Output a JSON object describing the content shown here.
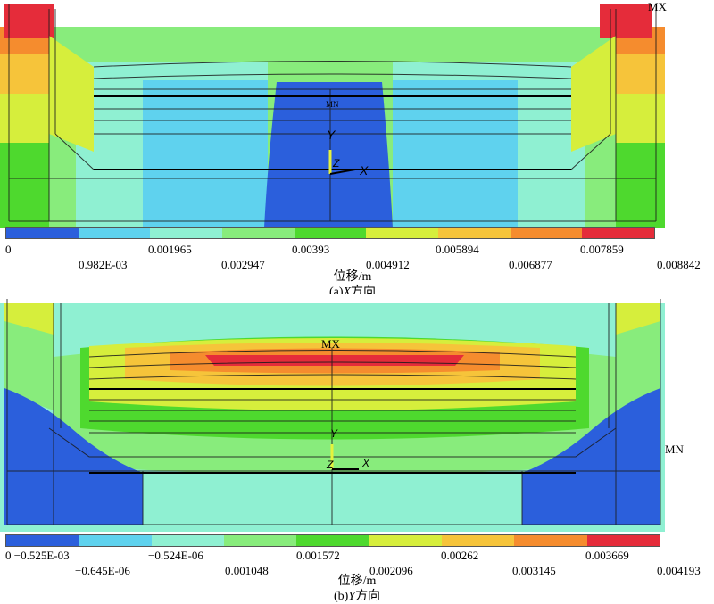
{
  "panel_a": {
    "caption_axis": "X",
    "caption_prefix": "(a)",
    "caption_suffix": "方向",
    "unit_label": "位移/m",
    "marker_max": "MX",
    "marker_mn_small": "MN",
    "axes": {
      "y": "Y",
      "z": "Z",
      "x": "X"
    },
    "legend_colors": [
      "#2b5fdc",
      "#5fd2ee",
      "#8ff0d2",
      "#88ec7c",
      "#4ed92e",
      "#d6ee3c",
      "#f6c43a",
      "#f58c2e",
      "#e52c3a"
    ],
    "ticks_top": [
      "0",
      "0.001965",
      "0.00393",
      "0.005894",
      "0.007859"
    ],
    "ticks_bottom": [
      "0.982E-03",
      "0.002947",
      "0.004912",
      "0.006877",
      "0.008842"
    ]
  },
  "panel_b": {
    "caption_axis": "Y",
    "caption_prefix": "(b)",
    "caption_suffix": "方向",
    "unit_label": "位移/m",
    "marker_max": "MX",
    "marker_min": "MN",
    "axes": {
      "y": "Y",
      "z": "Z",
      "x": "X"
    },
    "legend_colors": [
      "#2b5fdc",
      "#5fd2ee",
      "#8ff0d2",
      "#88ec7c",
      "#4ed92e",
      "#d6ee3c",
      "#f6c43a",
      "#f58c2e",
      "#e52c3a"
    ],
    "ticks_top": [
      "0 −0.525E-03",
      "−0.524E-06",
      "0.001572",
      "0.00262",
      "0.003669"
    ],
    "ticks_bottom": [
      "−0.645E-06",
      "0.001048",
      "0.002096",
      "0.003145",
      "0.004193"
    ]
  }
}
